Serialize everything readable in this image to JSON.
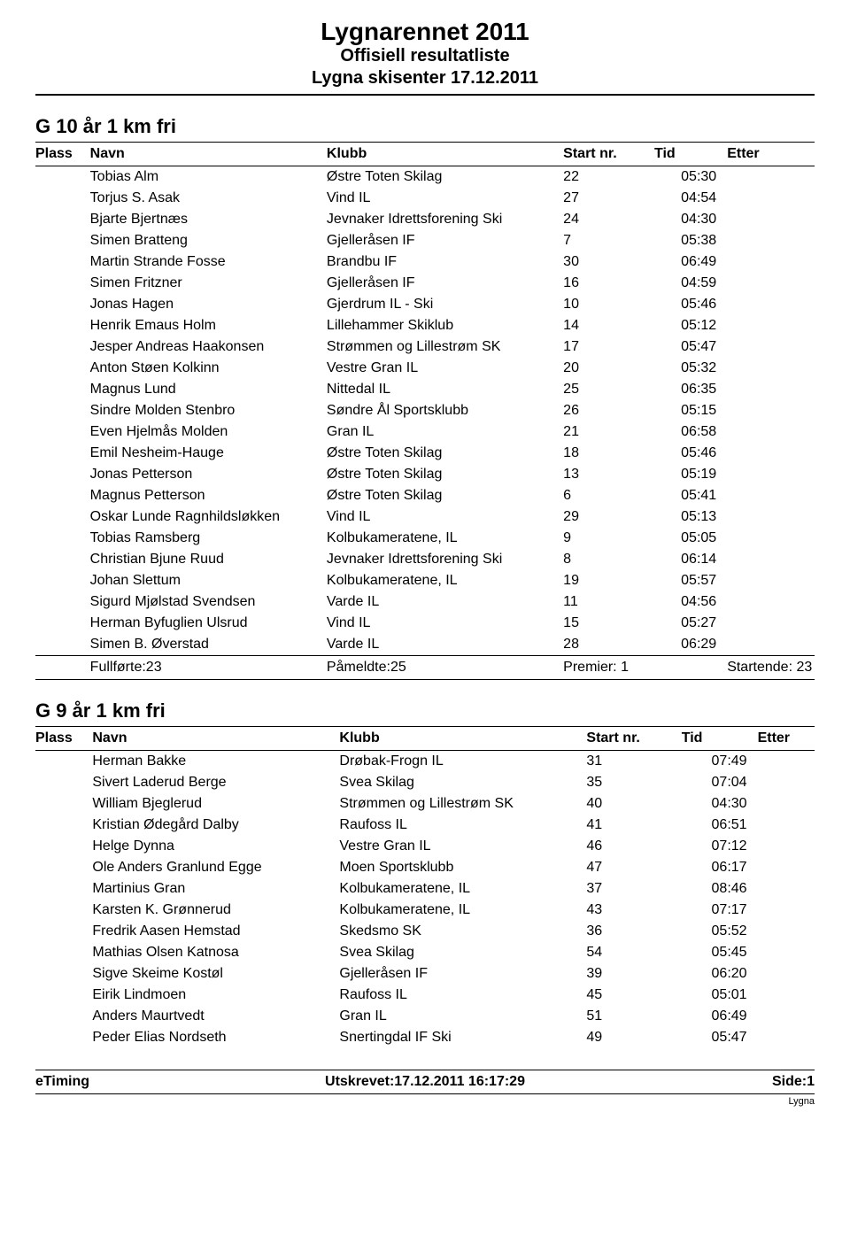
{
  "header": {
    "title": "Lygnarennet 2011",
    "subtitle": "Offisiell resultatliste",
    "venue": "Lygna skisenter 17.12.2011"
  },
  "columns": {
    "plass": "Plass",
    "navn": "Navn",
    "klubb": "Klubb",
    "startnr": "Start nr.",
    "tid": "Tid",
    "etter": "Etter"
  },
  "section1": {
    "title": "G 10 år 1 km fri",
    "rows": [
      {
        "navn": "Tobias Alm",
        "klubb": "Østre Toten Skilag",
        "start": "22",
        "tid": "05:30"
      },
      {
        "navn": "Torjus S. Asak",
        "klubb": "Vind IL",
        "start": "27",
        "tid": "04:54"
      },
      {
        "navn": "Bjarte Bjertnæs",
        "klubb": "Jevnaker Idrettsforening Ski",
        "start": "24",
        "tid": "04:30"
      },
      {
        "navn": "Simen Bratteng",
        "klubb": "Gjelleråsen IF",
        "start": "7",
        "tid": "05:38"
      },
      {
        "navn": "Martin Strande Fosse",
        "klubb": "Brandbu IF",
        "start": "30",
        "tid": "06:49"
      },
      {
        "navn": "Simen Fritzner",
        "klubb": "Gjelleråsen IF",
        "start": "16",
        "tid": "04:59"
      },
      {
        "navn": "Jonas Hagen",
        "klubb": "Gjerdrum IL - Ski",
        "start": "10",
        "tid": "05:46"
      },
      {
        "navn": "Henrik Emaus Holm",
        "klubb": "Lillehammer Skiklub",
        "start": "14",
        "tid": "05:12"
      },
      {
        "navn": "Jesper Andreas Haakonsen",
        "klubb": "Strømmen og Lillestrøm SK",
        "start": "17",
        "tid": "05:47"
      },
      {
        "navn": "Anton Støen Kolkinn",
        "klubb": "Vestre Gran IL",
        "start": "20",
        "tid": "05:32"
      },
      {
        "navn": "Magnus Lund",
        "klubb": "Nittedal IL",
        "start": "25",
        "tid": "06:35"
      },
      {
        "navn": "Sindre Molden Stenbro",
        "klubb": "Søndre Ål Sportsklubb",
        "start": "26",
        "tid": "05:15"
      },
      {
        "navn": "Even Hjelmås Molden",
        "klubb": "Gran IL",
        "start": "21",
        "tid": "06:58"
      },
      {
        "navn": "Emil Nesheim-Hauge",
        "klubb": "Østre Toten Skilag",
        "start": "18",
        "tid": "05:46"
      },
      {
        "navn": "Jonas Petterson",
        "klubb": "Østre Toten Skilag",
        "start": "13",
        "tid": "05:19"
      },
      {
        "navn": "Magnus Petterson",
        "klubb": "Østre Toten Skilag",
        "start": "6",
        "tid": "05:41"
      },
      {
        "navn": "Oskar Lunde Ragnhildsløkken",
        "klubb": "Vind IL",
        "start": "29",
        "tid": "05:13"
      },
      {
        "navn": "Tobias Ramsberg",
        "klubb": "Kolbukameratene, IL",
        "start": "9",
        "tid": "05:05"
      },
      {
        "navn": "Christian Bjune Ruud",
        "klubb": "Jevnaker Idrettsforening Ski",
        "start": "8",
        "tid": "06:14"
      },
      {
        "navn": "Johan Slettum",
        "klubb": "Kolbukameratene, IL",
        "start": "19",
        "tid": "05:57"
      },
      {
        "navn": "Sigurd Mjølstad Svendsen",
        "klubb": "Varde IL",
        "start": "11",
        "tid": "04:56"
      },
      {
        "navn": "Herman Byfuglien Ulsrud",
        "klubb": "Vind IL",
        "start": "15",
        "tid": "05:27"
      },
      {
        "navn": "Simen B. Øverstad",
        "klubb": "Varde IL",
        "start": "28",
        "tid": "06:29"
      }
    ],
    "summary": {
      "fullforte": "Fullførte:23",
      "pameldte": "Påmeldte:25",
      "premier": "Premier: 1",
      "startende": "Startende: 23"
    }
  },
  "section2": {
    "title": "G 9 år 1 km fri",
    "rows": [
      {
        "navn": "Herman Bakke",
        "klubb": "Drøbak-Frogn IL",
        "start": "31",
        "tid": "07:49"
      },
      {
        "navn": "Sivert Laderud Berge",
        "klubb": "Svea Skilag",
        "start": "35",
        "tid": "07:04"
      },
      {
        "navn": "William Bjeglerud",
        "klubb": "Strømmen og Lillestrøm SK",
        "start": "40",
        "tid": "04:30"
      },
      {
        "navn": "Kristian Ødegård Dalby",
        "klubb": "Raufoss IL",
        "start": "41",
        "tid": "06:51"
      },
      {
        "navn": "Helge Dynna",
        "klubb": "Vestre Gran IL",
        "start": "46",
        "tid": "07:12"
      },
      {
        "navn": "Ole Anders Granlund Egge",
        "klubb": "Moen Sportsklubb",
        "start": "47",
        "tid": "06:17"
      },
      {
        "navn": "Martinius Gran",
        "klubb": "Kolbukameratene, IL",
        "start": "37",
        "tid": "08:46"
      },
      {
        "navn": "Karsten K. Grønnerud",
        "klubb": "Kolbukameratene, IL",
        "start": "43",
        "tid": "07:17"
      },
      {
        "navn": "Fredrik Aasen Hemstad",
        "klubb": "Skedsmo SK",
        "start": "36",
        "tid": "05:52"
      },
      {
        "navn": "Mathias Olsen Katnosa",
        "klubb": "Svea Skilag",
        "start": "54",
        "tid": "05:45"
      },
      {
        "navn": "Sigve Skeime Kostøl",
        "klubb": "Gjelleråsen IF",
        "start": "39",
        "tid": "06:20"
      },
      {
        "navn": "Eirik Lindmoen",
        "klubb": "Raufoss IL",
        "start": "45",
        "tid": "05:01"
      },
      {
        "navn": "Anders Maurtvedt",
        "klubb": "Gran IL",
        "start": "51",
        "tid": "06:49"
      },
      {
        "navn": "Peder Elias Nordseth",
        "klubb": "Snertingdal IF Ski",
        "start": "49",
        "tid": "05:47"
      }
    ]
  },
  "footer": {
    "left": "eTiming",
    "center": "Utskrevet:17.12.2011 16:17:29",
    "right": "Side:1",
    "sub": "Lygna"
  }
}
